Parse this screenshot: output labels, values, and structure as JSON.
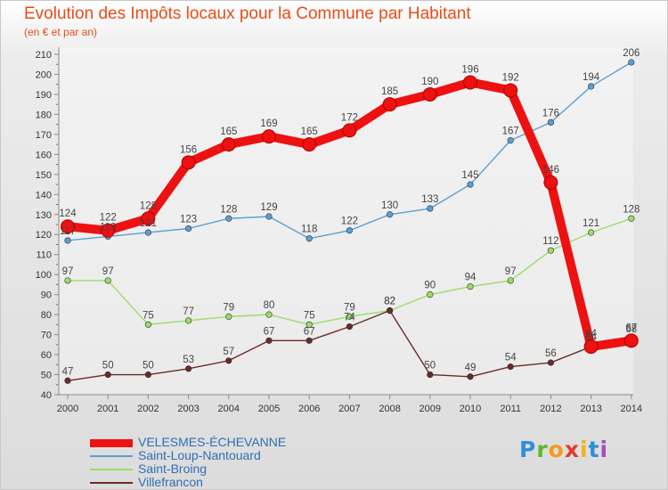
{
  "header": {
    "title": "Evolution des Impôts locaux pour la Commune par Habitant",
    "subtitle": "(en € et par an)"
  },
  "brand": {
    "text": "Proxiti",
    "colors": [
      "#2f8fd8",
      "#5fb530",
      "#f29a1c",
      "#e23b2e",
      "#f2b21c",
      "#2f8fd8",
      "#a54cc3"
    ]
  },
  "chart_data": {
    "type": "line",
    "title": "Evolution des Impôts locaux pour la Commune par Habitant",
    "subtitle": "(en € et par an)",
    "x": [
      "2000",
      "2001",
      "2002",
      "2003",
      "2004",
      "2005",
      "2006",
      "2007",
      "2008",
      "2009",
      "2010",
      "2011",
      "2012",
      "2013",
      "2014"
    ],
    "ylim": [
      40,
      210
    ],
    "yticks": [
      40,
      50,
      60,
      70,
      80,
      90,
      100,
      110,
      120,
      130,
      140,
      150,
      160,
      170,
      180,
      190,
      200,
      210
    ],
    "grid": false,
    "legend_position": "bottom-left",
    "series": [
      {
        "name": "VELESMES-ÉCHEVANNE",
        "color": "#ee1111",
        "emphasis": true,
        "values": [
          124,
          122,
          128,
          156,
          165,
          169,
          165,
          172,
          185,
          190,
          196,
          192,
          146,
          64,
          67
        ]
      },
      {
        "name": "Saint-Loup-Nantouard",
        "color": "#5a9fd4",
        "values": [
          117,
          119,
          121,
          123,
          128,
          129,
          118,
          122,
          130,
          133,
          145,
          167,
          176,
          194,
          206
        ]
      },
      {
        "name": "Saint-Broing",
        "color": "#99dd66",
        "values": [
          97,
          97,
          75,
          77,
          79,
          80,
          75,
          79,
          82,
          90,
          94,
          97,
          112,
          121,
          128
        ]
      },
      {
        "name": "Villefrancon",
        "color": "#6b2a2a",
        "values": [
          47,
          50,
          50,
          53,
          57,
          67,
          67,
          74,
          82,
          50,
          49,
          54,
          56,
          64,
          68
        ]
      }
    ]
  }
}
